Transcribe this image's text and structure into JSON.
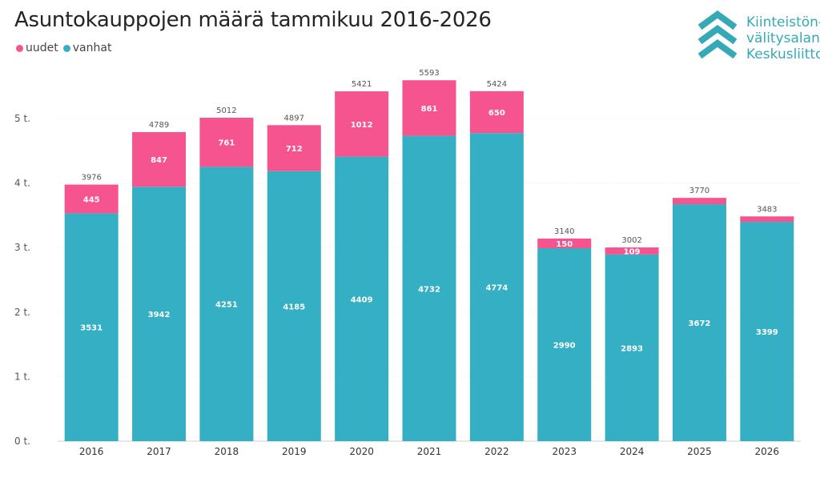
{
  "title": "Asuntokauppojen määrä tammikuu 2016-2026",
  "legend": [
    {
      "label": "uudet",
      "color": "#f5548e"
    },
    {
      "label": "vanhat",
      "color": "#35afc4"
    }
  ],
  "logo": {
    "lines": [
      "Kiinteistön-",
      "välitysalan",
      "Keskusliitto"
    ],
    "color": "#36a9b6"
  },
  "chart_data": {
    "type": "bar",
    "stacked": true,
    "title": "Asuntokauppojen määrä tammikuu 2016-2026",
    "categories": [
      "2016",
      "2017",
      "2018",
      "2019",
      "2020",
      "2021",
      "2022",
      "2023",
      "2024",
      "2025",
      "2026"
    ],
    "series": [
      {
        "name": "vanhat",
        "color": "#35afc4",
        "values": [
          3531,
          3942,
          4251,
          4185,
          4409,
          4732,
          4774,
          2990,
          2893,
          3672,
          3399
        ]
      },
      {
        "name": "uudet",
        "color": "#f5548e",
        "values": [
          445,
          847,
          761,
          712,
          1012,
          861,
          650,
          150,
          109,
          98,
          84
        ],
        "labels": [
          "445",
          "847",
          "761",
          "712",
          "1012",
          "861",
          "650",
          "150",
          "109",
          "",
          ""
        ]
      }
    ],
    "totals": [
      3976,
      4789,
      5012,
      4897,
      5421,
      5593,
      5424,
      3140,
      3002,
      3770,
      3483
    ],
    "yticks": [
      {
        "value": 0,
        "label": "0 t."
      },
      {
        "value": 1000,
        "label": "1 t."
      },
      {
        "value": 2000,
        "label": "2 t."
      },
      {
        "value": 3000,
        "label": "3 t."
      },
      {
        "value": 4000,
        "label": "4 t."
      },
      {
        "value": 5000,
        "label": "5 t."
      }
    ],
    "ylim": [
      0,
      5600
    ],
    "xlabel": "",
    "ylabel": "",
    "grid": true,
    "legend_position": "top-left"
  }
}
